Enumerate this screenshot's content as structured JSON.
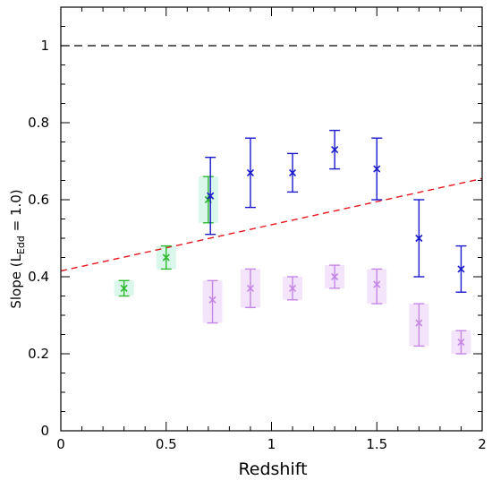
{
  "chart_data": {
    "type": "scatter",
    "xlabel": "Redshift",
    "ylabel": {
      "prefix": "Slope  (L",
      "subscript": "Edd",
      "suffix": " = 1.0)"
    },
    "xlim": [
      0,
      2
    ],
    "ylim": [
      0,
      1.1
    ],
    "xticks": [
      "0",
      "0.5",
      "1",
      "1.5",
      "2"
    ],
    "yticks": [
      "0",
      "0.2",
      "0.4",
      "0.6",
      "0.8",
      "1"
    ],
    "grid": false,
    "reference_line": {
      "y": 1.0,
      "style": "dashed",
      "color": "#000000"
    },
    "fit_line": {
      "x": [
        0,
        2
      ],
      "y": [
        0.415,
        0.655
      ],
      "style": "dashed",
      "color": "#e8141c"
    },
    "series": [
      {
        "color": "#1a1acc",
        "marker": "x",
        "points": [
          {
            "x": 0.71,
            "y": 0.61,
            "lo": 0.51,
            "hi": 0.71
          },
          {
            "x": 0.9,
            "y": 0.67,
            "lo": 0.58,
            "hi": 0.76
          },
          {
            "x": 1.1,
            "y": 0.67,
            "lo": 0.62,
            "hi": 0.72
          },
          {
            "x": 1.3,
            "y": 0.73,
            "lo": 0.68,
            "hi": 0.78
          },
          {
            "x": 1.5,
            "y": 0.68,
            "lo": 0.6,
            "hi": 0.76
          },
          {
            "x": 1.7,
            "y": 0.5,
            "lo": 0.4,
            "hi": 0.6
          },
          {
            "x": 1.9,
            "y": 0.42,
            "lo": 0.36,
            "hi": 0.48
          }
        ]
      },
      {
        "color": "#2db82d",
        "marker": "x",
        "band_color": "#d9f7ea",
        "points": [
          {
            "x": 0.3,
            "y": 0.37,
            "lo": 0.35,
            "hi": 0.39
          },
          {
            "x": 0.5,
            "y": 0.45,
            "lo": 0.42,
            "hi": 0.48
          },
          {
            "x": 0.7,
            "y": 0.6,
            "lo": 0.54,
            "hi": 0.66
          }
        ]
      },
      {
        "color": "#c487e6",
        "marker": "x",
        "band_color": "#f3e4fb",
        "points": [
          {
            "x": 0.72,
            "y": 0.34,
            "lo": 0.28,
            "hi": 0.39
          },
          {
            "x": 0.9,
            "y": 0.37,
            "lo": 0.32,
            "hi": 0.42
          },
          {
            "x": 1.1,
            "y": 0.37,
            "lo": 0.34,
            "hi": 0.4
          },
          {
            "x": 1.3,
            "y": 0.4,
            "lo": 0.37,
            "hi": 0.43
          },
          {
            "x": 1.5,
            "y": 0.38,
            "lo": 0.33,
            "hi": 0.42
          },
          {
            "x": 1.7,
            "y": 0.28,
            "lo": 0.22,
            "hi": 0.33
          },
          {
            "x": 1.9,
            "y": 0.23,
            "lo": 0.2,
            "hi": 0.26
          }
        ]
      }
    ]
  }
}
